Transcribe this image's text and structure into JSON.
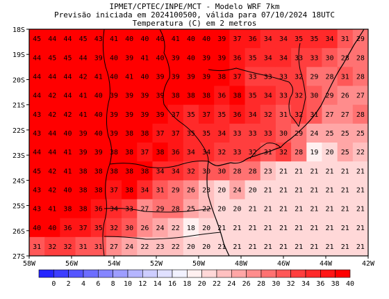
{
  "header": {
    "line1": "IPMET/CPTEC/INPE/MCT - Modelo WRF 7km",
    "line2": "Previsão iniciada em 2024100500, válida para 07/10/2024 18UTC",
    "line3": "Temperatura (C) em 2 metros"
  },
  "axes": {
    "lat_ticks": [
      "18S",
      "19S",
      "20S",
      "21S",
      "22S",
      "23S",
      "24S",
      "25S",
      "26S",
      "27S"
    ],
    "lon_ticks": [
      "58W",
      "56W",
      "54W",
      "52W",
      "50W",
      "48W",
      "46W",
      "44W",
      "42W"
    ],
    "lat_range": [
      -27,
      -18
    ],
    "lon_range": [
      -58,
      -42
    ]
  },
  "colorbar": {
    "values": [
      "0",
      "2",
      "4",
      "6",
      "8",
      "10",
      "12",
      "14",
      "16",
      "18",
      "20",
      "22",
      "24",
      "26",
      "28",
      "30",
      "32",
      "34",
      "36",
      "38",
      "40"
    ],
    "colors": [
      "#2525ff",
      "#3d3dff",
      "#5555ff",
      "#6d6dff",
      "#8585ff",
      "#9d9dff",
      "#b5b5ff",
      "#cdcdff",
      "#e0e0ff",
      "#f2f2ff",
      "#fff0f0",
      "#ffd8d8",
      "#ffc0c0",
      "#ffa6a6",
      "#ff8c8c",
      "#ff7272",
      "#ff5858",
      "#ff3e3e",
      "#ff2a2a",
      "#ff1616",
      "#ff0000"
    ]
  },
  "grid_values": [
    [
      45,
      44,
      44,
      45,
      43,
      41,
      40,
      40,
      40,
      41,
      40,
      40,
      39,
      37,
      36,
      34,
      34,
      35,
      35,
      34,
      31,
      29
    ],
    [
      44,
      45,
      45,
      44,
      39,
      40,
      39,
      41,
      40,
      39,
      40,
      39,
      39,
      36,
      35,
      34,
      34,
      33,
      33,
      30,
      28,
      28
    ],
    [
      44,
      44,
      44,
      42,
      41,
      40,
      41,
      40,
      39,
      39,
      39,
      39,
      38,
      37,
      33,
      33,
      33,
      32,
      29,
      28,
      31,
      28
    ],
    [
      44,
      42,
      44,
      41,
      40,
      39,
      39,
      39,
      39,
      38,
      38,
      38,
      36,
      38,
      35,
      34,
      33,
      32,
      30,
      29,
      26,
      27
    ],
    [
      43,
      42,
      42,
      41,
      40,
      39,
      39,
      39,
      39,
      37,
      35,
      37,
      35,
      36,
      34,
      32,
      31,
      32,
      31,
      27,
      27,
      28
    ],
    [
      43,
      44,
      40,
      39,
      40,
      39,
      38,
      38,
      37,
      37,
      35,
      35,
      34,
      33,
      33,
      33,
      30,
      29,
      24,
      25,
      25,
      25
    ],
    [
      44,
      44,
      41,
      39,
      39,
      38,
      38,
      37,
      38,
      36,
      34,
      34,
      32,
      33,
      32,
      31,
      32,
      28,
      19,
      20,
      25,
      22
    ],
    [
      45,
      42,
      41,
      38,
      38,
      38,
      38,
      38,
      34,
      34,
      32,
      30,
      30,
      28,
      28,
      23,
      21,
      21,
      21,
      21,
      21,
      21
    ],
    [
      43,
      42,
      40,
      38,
      38,
      37,
      38,
      34,
      31,
      29,
      26,
      23,
      20,
      24,
      20,
      21,
      21,
      21,
      21,
      21,
      21,
      21
    ],
    [
      43,
      41,
      38,
      38,
      36,
      34,
      33,
      27,
      29,
      28,
      25,
      22,
      20,
      20,
      21,
      21,
      21,
      21,
      21,
      21,
      21,
      21
    ],
    [
      40,
      40,
      36,
      37,
      35,
      32,
      30,
      26,
      24,
      22,
      18,
      20,
      21,
      21,
      21,
      21,
      21,
      21,
      21,
      21,
      21,
      21
    ],
    [
      31,
      32,
      32,
      31,
      31,
      27,
      24,
      22,
      23,
      22,
      20,
      20,
      21,
      21,
      21,
      21,
      21,
      21,
      21,
      21,
      21,
      21
    ]
  ]
}
